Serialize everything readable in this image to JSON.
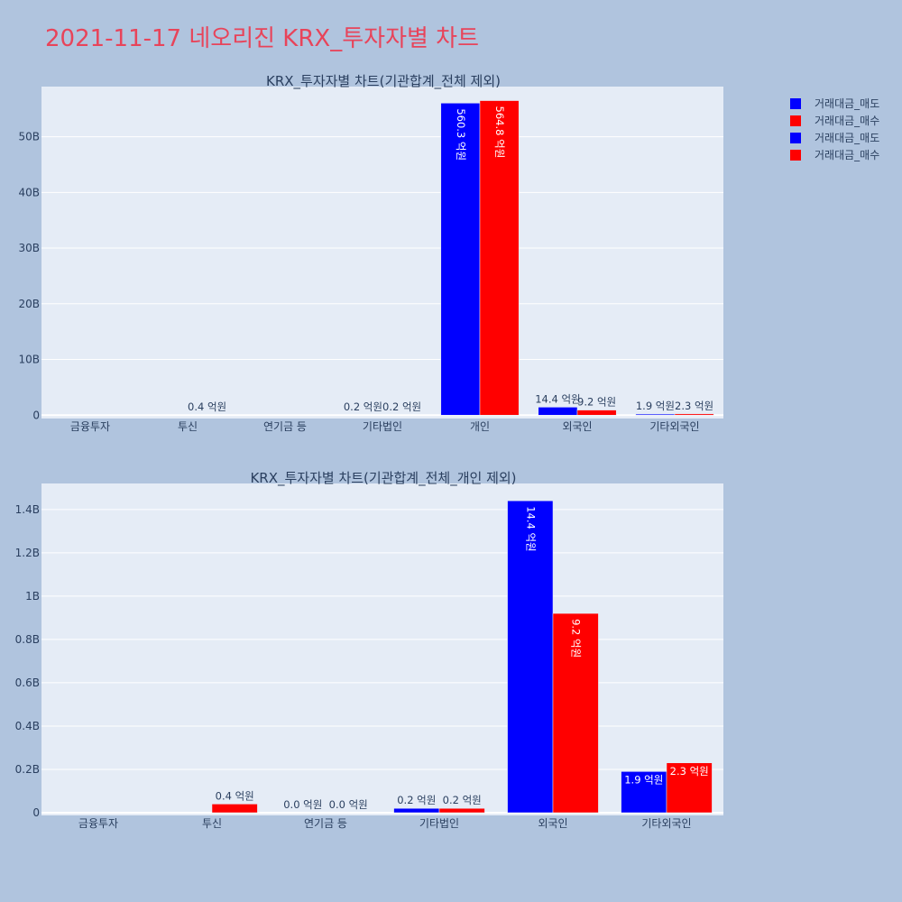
{
  "title": "2021-11-17 네오리진 KRX_투자자별 차트",
  "colors": {
    "sell": "#0000ff",
    "buy": "#ff0000",
    "plot_bg": "#e5ecf6",
    "paper_bg": "#b0c4de",
    "title": "#e8445a"
  },
  "legend": [
    "거래대금_매도",
    "거래대금_매수",
    "거래대금_매도",
    "거래대금_매수"
  ],
  "chart_data": [
    {
      "type": "bar",
      "title": "KRX_투자자별 차트(기관합계_전체 제외)",
      "categories": [
        "금융투자",
        "투신",
        "연기금 등",
        "기타법인",
        "개인",
        "외국인",
        "기타외국인"
      ],
      "yticks": [
        0,
        10,
        20,
        30,
        40,
        50
      ],
      "yticklabels": [
        "0",
        "10B",
        "20B",
        "30B",
        "40B",
        "50B"
      ],
      "ylim": [
        -0.6,
        59
      ],
      "series": [
        {
          "name": "거래대금_매도",
          "color": "#0000ff",
          "values": [
            0,
            0,
            0,
            0.02,
            56.03,
            1.44,
            0.19
          ],
          "labels": [
            "",
            "",
            "",
            "0.2 억원",
            "560.3 억원",
            "14.4 억원",
            "1.9 억원"
          ]
        },
        {
          "name": "거래대금_매수",
          "color": "#ff0000",
          "values": [
            0,
            0.04,
            0,
            0.02,
            56.48,
            0.92,
            0.23
          ],
          "labels": [
            "",
            "0.4 억원",
            "",
            "0.2 억원",
            "564.8 억원",
            "9.2 억원",
            "2.3 억원"
          ]
        }
      ]
    },
    {
      "type": "bar",
      "title": "KRX_투자자별 차트(기관합계_전체_개인 제외)",
      "categories": [
        "금융투자",
        "투신",
        "연기금 등",
        "기타법인",
        "외국인",
        "기타외국인"
      ],
      "yticks": [
        0,
        0.2,
        0.4,
        0.6,
        0.8,
        1.0,
        1.2,
        1.4
      ],
      "yticklabels": [
        "0",
        "0.2B",
        "0.4B",
        "0.6B",
        "0.8B",
        "1B",
        "1.2B",
        "1.4B"
      ],
      "ylim": [
        -0.0125,
        1.52
      ],
      "series": [
        {
          "name": "거래대금_매도",
          "color": "#0000ff",
          "values": [
            0,
            0,
            0,
            0.02,
            1.44,
            0.19
          ],
          "labels": [
            "",
            "",
            "0.0 억원",
            "0.2 억원",
            "14.4 억원",
            "1.9 억원"
          ]
        },
        {
          "name": "거래대금_매수",
          "color": "#ff0000",
          "values": [
            0,
            0.04,
            0,
            0.02,
            0.92,
            0.23
          ],
          "labels": [
            "",
            "0.4 억원",
            "0.0 억원",
            "0.2 억원",
            "9.2 억원",
            "2.3 억원"
          ]
        }
      ]
    }
  ]
}
